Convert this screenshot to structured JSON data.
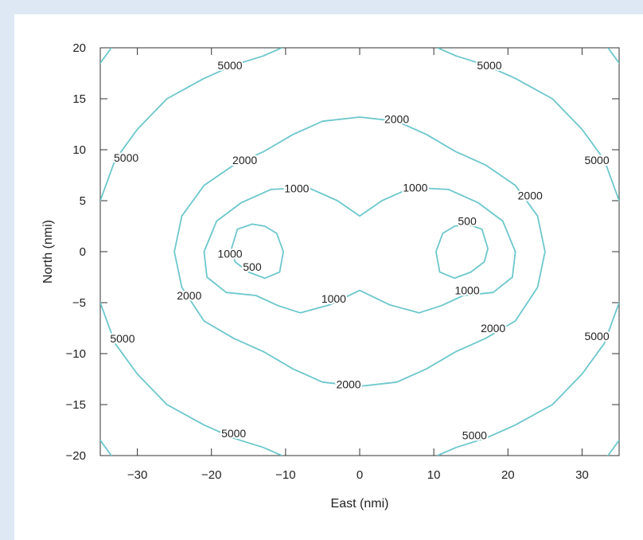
{
  "chart_data": {
    "type": "contour",
    "title": "",
    "xlabel": "East (nmi)",
    "ylabel": "North (nmi)",
    "xlim": [
      -35,
      35
    ],
    "ylim": [
      -20,
      20
    ],
    "xticks": [
      -30,
      -20,
      -10,
      0,
      10,
      20,
      30
    ],
    "xtick_labels": [
      "−30",
      "−20",
      "−10",
      "0",
      "10",
      "20",
      "30"
    ],
    "yticks": [
      20,
      15,
      10,
      5,
      0,
      -5,
      -10,
      -15,
      -20
    ],
    "ytick_labels": [
      "20",
      "15",
      "10",
      "5",
      "0",
      "−5",
      "−10",
      "−15",
      "−20"
    ],
    "grid": false,
    "line_color": "#6cc7cc",
    "levels": [
      {
        "level": 500,
        "label": "500",
        "curves": [
          [
            [
              -12.8,
              2.5
            ],
            [
              -11.2,
              1.8
            ],
            [
              -10.3,
              0
            ],
            [
              -10.8,
              -2
            ],
            [
              -12.8,
              -2.6
            ],
            [
              -15,
              -2
            ],
            [
              -16.8,
              -1
            ],
            [
              -17.3,
              0.3
            ],
            [
              -16.5,
              2.2
            ],
            [
              -14.5,
              2.7
            ],
            [
              -12.8,
              2.5
            ]
          ],
          [
            [
              12.8,
              2.5
            ],
            [
              11.2,
              1.8
            ],
            [
              10.3,
              0
            ],
            [
              10.8,
              -2
            ],
            [
              12.8,
              -2.6
            ],
            [
              15,
              -2
            ],
            [
              16.8,
              -1
            ],
            [
              17.3,
              0.3
            ],
            [
              16.5,
              2.2
            ],
            [
              14.5,
              2.7
            ],
            [
              12.8,
              2.5
            ]
          ]
        ],
        "labels": [
          {
            "text": "500",
            "x": -14.5,
            "y": -1.5
          },
          {
            "text": "500",
            "x": 14.5,
            "y": 3.0
          }
        ]
      },
      {
        "level": 1000,
        "label": "1000",
        "curves": [
          [
            [
              0,
              3.5
            ],
            [
              -3,
              5
            ],
            [
              -7,
              6.3
            ],
            [
              -12,
              6.1
            ],
            [
              -16,
              4.8
            ],
            [
              -19.3,
              3
            ],
            [
              -21,
              0
            ],
            [
              -20.6,
              -2.5
            ],
            [
              -18,
              -4
            ],
            [
              -14,
              -4.3
            ],
            [
              -11,
              -5.3
            ],
            [
              -8,
              -6
            ],
            [
              -4,
              -5.2
            ],
            [
              0,
              -3.8
            ],
            [
              4,
              -5.2
            ],
            [
              8,
              -6
            ],
            [
              11,
              -5.3
            ],
            [
              14,
              -4.3
            ],
            [
              18,
              -4
            ],
            [
              20.6,
              -2.5
            ],
            [
              21,
              0
            ],
            [
              19.3,
              3
            ],
            [
              16,
              4.8
            ],
            [
              12,
              6.1
            ],
            [
              7,
              6.3
            ],
            [
              3,
              5
            ],
            [
              0,
              3.5
            ]
          ]
        ],
        "labels": [
          {
            "text": "1000",
            "x": -8.5,
            "y": 6.2
          },
          {
            "text": "1000",
            "x": 7.5,
            "y": 6.3
          },
          {
            "text": "1000",
            "x": -17.5,
            "y": -0.2
          },
          {
            "text": "1000",
            "x": 14.5,
            "y": -3.8
          },
          {
            "text": "1000",
            "x": -3.5,
            "y": -4.6
          }
        ]
      },
      {
        "level": 2000,
        "label": "2000",
        "curves": [
          [
            [
              0,
              13.2
            ],
            [
              -5,
              12.8
            ],
            [
              -9,
              11.5
            ],
            [
              -13,
              9.8
            ],
            [
              -17,
              8.5
            ],
            [
              -21,
              6.5
            ],
            [
              -24,
              3.5
            ],
            [
              -25,
              0
            ],
            [
              -24,
              -3.5
            ],
            [
              -21,
              -6.8
            ],
            [
              -17,
              -8.5
            ],
            [
              -13,
              -9.8
            ],
            [
              -9,
              -11.5
            ],
            [
              -5,
              -12.8
            ],
            [
              0,
              -13.2
            ],
            [
              5,
              -12.8
            ],
            [
              9,
              -11.5
            ],
            [
              13,
              -9.8
            ],
            [
              17,
              -8.5
            ],
            [
              21,
              -6.8
            ],
            [
              24,
              -3.5
            ],
            [
              25,
              0
            ],
            [
              24,
              3.5
            ],
            [
              21,
              6.5
            ],
            [
              17,
              8.5
            ],
            [
              13,
              9.8
            ],
            [
              9,
              11.5
            ],
            [
              5,
              12.8
            ],
            [
              0,
              13.2
            ]
          ]
        ],
        "labels": [
          {
            "text": "2000",
            "x": 5.0,
            "y": 13.0
          },
          {
            "text": "2000",
            "x": -15.5,
            "y": 9.0
          },
          {
            "text": "2000",
            "x": 23.0,
            "y": 5.5
          },
          {
            "text": "2000",
            "x": -23.0,
            "y": -4.3
          },
          {
            "text": "2000",
            "x": 18.0,
            "y": -7.5
          },
          {
            "text": "2000",
            "x": -1.5,
            "y": -13.0
          }
        ]
      },
      {
        "level": 5000,
        "label": "5000",
        "curves": [
          [
            [
              -35,
              5
            ],
            [
              -33,
              9
            ],
            [
              -30,
              12
            ],
            [
              -26,
              15
            ],
            [
              -21,
              17
            ],
            [
              -17,
              18.3
            ],
            [
              -13,
              19.2
            ],
            [
              -10.5,
              20
            ]
          ],
          [
            [
              10.5,
              20
            ],
            [
              13,
              19.2
            ],
            [
              17,
              18.3
            ],
            [
              21,
              17
            ],
            [
              26,
              15
            ],
            [
              30,
              12
            ],
            [
              33,
              9
            ],
            [
              35,
              5
            ]
          ],
          [
            [
              -35,
              -5
            ],
            [
              -33,
              -9
            ],
            [
              -30,
              -12
            ],
            [
              -26,
              -15
            ],
            [
              -21,
              -17
            ],
            [
              -17,
              -18.3
            ],
            [
              -13,
              -19.2
            ],
            [
              -10.5,
              -20
            ]
          ],
          [
            [
              10.5,
              -20
            ],
            [
              13,
              -19.2
            ],
            [
              17,
              -18.3
            ],
            [
              21,
              -17
            ],
            [
              26,
              -15
            ],
            [
              30,
              -12
            ],
            [
              33,
              -9
            ],
            [
              35,
              -5
            ]
          ],
          [
            [
              -35,
              18.5
            ],
            [
              -33.5,
              20
            ]
          ],
          [
            [
              35,
              18.5
            ],
            [
              33.5,
              20
            ]
          ],
          [
            [
              -35,
              -18.5
            ],
            [
              -33.5,
              -20
            ]
          ],
          [
            [
              35,
              -18.5
            ],
            [
              33.5,
              -20
            ]
          ]
        ],
        "labels": [
          {
            "text": "5000",
            "x": -17.5,
            "y": 18.3
          },
          {
            "text": "5000",
            "x": 17.5,
            "y": 18.3
          },
          {
            "text": "5000",
            "x": -31.5,
            "y": 9.2
          },
          {
            "text": "5000",
            "x": 32.0,
            "y": 9.0
          },
          {
            "text": "5000",
            "x": -32.0,
            "y": -8.5
          },
          {
            "text": "5000",
            "x": 32.0,
            "y": -8.3
          },
          {
            "text": "5000",
            "x": -17.0,
            "y": -17.8
          },
          {
            "text": "5000",
            "x": 15.5,
            "y": -18.0
          }
        ]
      }
    ]
  }
}
